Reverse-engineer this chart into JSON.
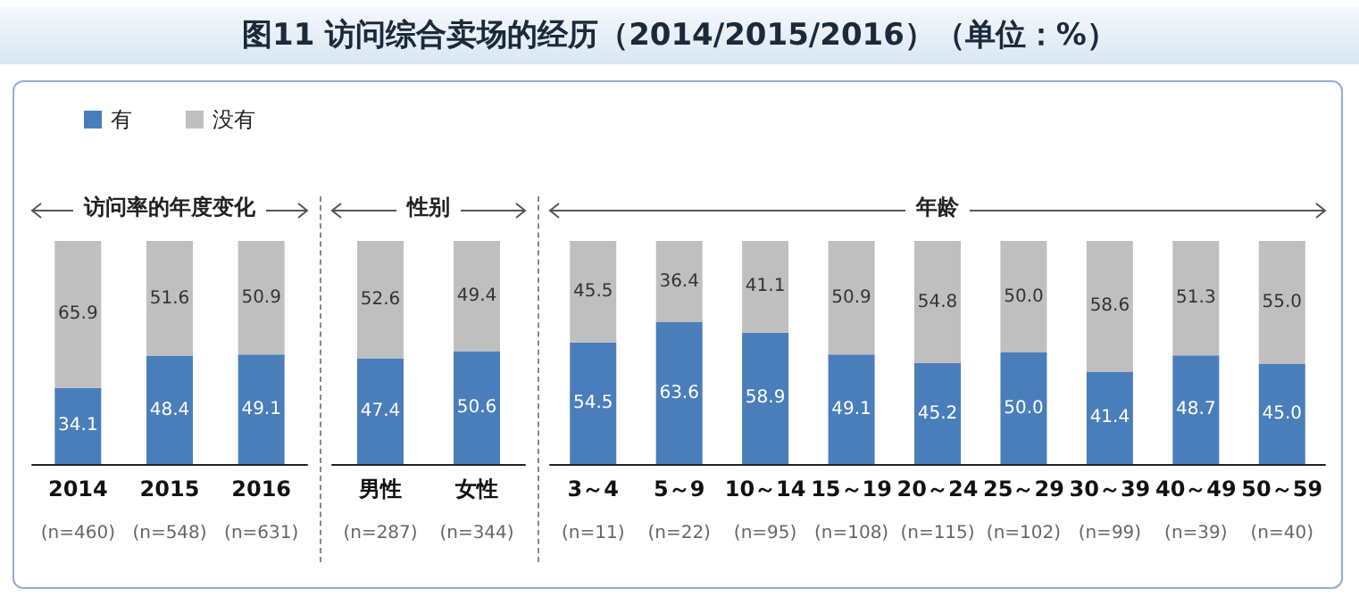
{
  "chart_data": [
    {
      "type": "other",
      "title": "图11 访问综合卖场的经历（2014/2015/2016）（单位：%）"
    },
    {
      "type": "bar",
      "subtitle": "访问率的年度变化",
      "categories": [
        "2014",
        "2015",
        "2016"
      ],
      "stacked": true,
      "data_labels": true,
      "legend": "top",
      "series": [
        {
          "name": "有",
          "color": "#4a7ebb",
          "values": [
            34.1,
            48.4,
            49.1
          ]
        },
        {
          "name": "没有",
          "color": "#bfbfbf",
          "values": [
            65.9,
            51.6,
            50.9
          ]
        }
      ],
      "annotations": [
        "(n=460)",
        "(n=548)",
        "(n=631)"
      ]
    },
    {
      "type": "bar",
      "subtitle": "性别",
      "categories": [
        "男性",
        "女性"
      ],
      "stacked": true,
      "data_labels": true,
      "series": [
        {
          "color": "#4a7ebb",
          "values": [
            47.4,
            50.6
          ]
        },
        {
          "color": "#bfbfbf",
          "values": [
            52.6,
            49.4
          ]
        }
      ],
      "annotations": [
        "(n=287)",
        "(n=344)"
      ]
    },
    {
      "type": "bar",
      "subtitle": "年龄",
      "categories": [
        "3～4",
        "5～9",
        "10～14",
        "15～19",
        "20～24",
        "25～29",
        "30～39",
        "40～49",
        "50～59"
      ],
      "stacked": true,
      "series": [
        {
          "color": "#4a7ebb",
          "values": [
            54.5,
            63.6,
            58.9,
            49.1,
            45.2,
            50.0,
            41.4,
            48.7,
            45.0
          ],
          "value_labels": [
            "54.5",
            "63.6",
            "58.9",
            "49.1",
            "45.2",
            "50.0",
            "41.4",
            "48.7",
            "45.0"
          ]
        },
        {
          "color": "#bfbfbf",
          "values": [
            45.5,
            36.4,
            41.1,
            50.9,
            54.8,
            50.0,
            58.6,
            51.3,
            55.0
          ],
          "value_labels": [
            "45.5",
            "36.4",
            "41.1",
            "50.9",
            "54.8",
            "50.0",
            "58.6",
            "51.3",
            "55.0"
          ]
        }
      ],
      "annotations": [
        "(n=11)",
        "(n=22)",
        "(n=95)",
        "(n=108)",
        "(n=115)",
        "(n=102)",
        "(n=99)",
        "(n=39)",
        "(n=40)"
      ]
    }
  ]
}
